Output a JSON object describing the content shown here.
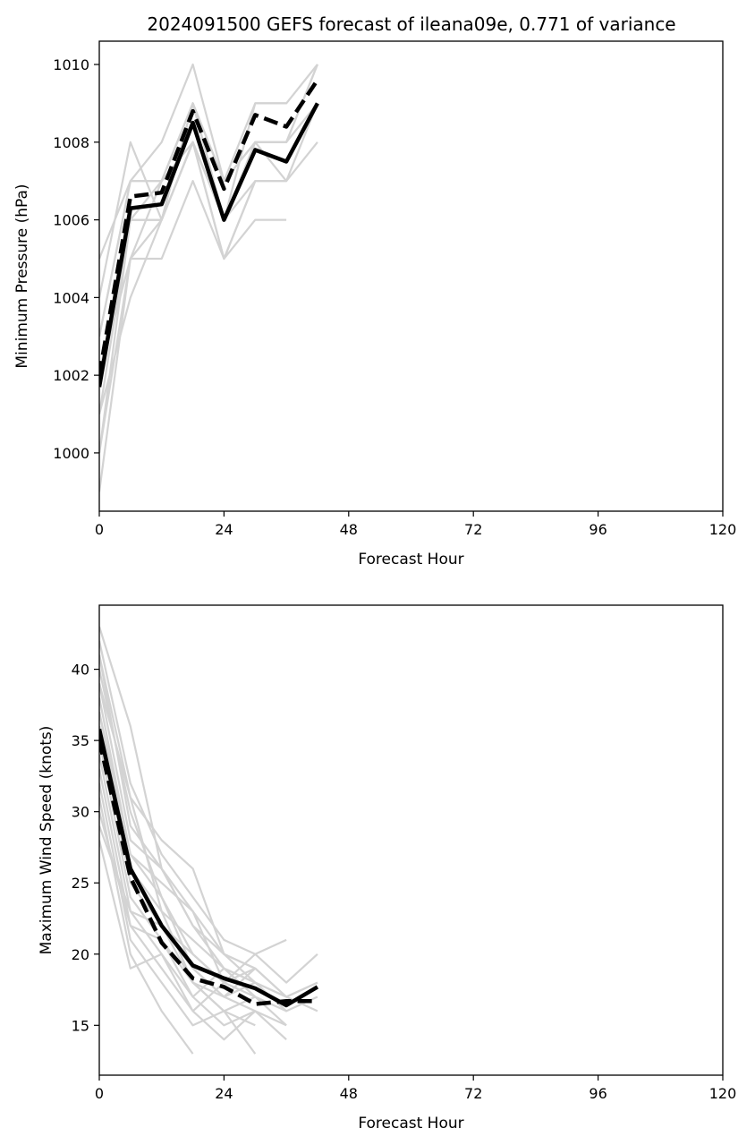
{
  "colors": {
    "member": "#d3d3d3",
    "mean": "#000000",
    "axis": "#000000",
    "background": "#ffffff"
  },
  "chart_data": [
    {
      "type": "line",
      "title": "2024091500 GEFS forecast of ileana09e, 0.771 of variance",
      "xlabel": "Forecast Hour",
      "ylabel": "Minimum Pressure (hPa)",
      "xlim": [
        0,
        120
      ],
      "ylim": [
        998.5,
        1010.6
      ],
      "xticks": [
        0,
        24,
        48,
        72,
        96,
        120
      ],
      "yticks": [
        1000,
        1002,
        1004,
        1006,
        1008,
        1010
      ],
      "grid": false,
      "members": [
        {
          "x": [
            0,
            6,
            12,
            18,
            24,
            30,
            36,
            42
          ],
          "y": [
            1005,
            1007,
            1008,
            1010,
            1007,
            1009,
            1009,
            1010
          ]
        },
        {
          "x": [
            0,
            6,
            12,
            18,
            24,
            30,
            36,
            42
          ],
          "y": [
            1003,
            1007,
            1007,
            1009,
            1006,
            1008,
            1008,
            1010
          ]
        },
        {
          "x": [
            0,
            6,
            12,
            18,
            24,
            30,
            36,
            42
          ],
          "y": [
            1002,
            1006,
            1007,
            1009,
            1007,
            1008,
            1008,
            1009
          ]
        },
        {
          "x": [
            0,
            6,
            12,
            18,
            24,
            30,
            36,
            42
          ],
          "y": [
            1001,
            1006,
            1006,
            1008,
            1006,
            1008,
            1007,
            1009
          ]
        },
        {
          "x": [
            0,
            6,
            12,
            18,
            24,
            30,
            36,
            42
          ],
          "y": [
            1000,
            1006,
            1006,
            1008,
            1006,
            1007,
            1007,
            1008
          ]
        },
        {
          "x": [
            0,
            6,
            12,
            18,
            24,
            30,
            36
          ],
          "y": [
            999,
            1005,
            1005,
            1007,
            1005,
            1006,
            1006
          ]
        },
        {
          "x": [
            0,
            6,
            12,
            18,
            24,
            30,
            36
          ],
          "y": [
            1004,
            1008,
            1006,
            1009,
            1006,
            1008,
            1008
          ]
        },
        {
          "x": [
            0,
            6,
            12,
            18,
            24,
            30,
            36
          ],
          "y": [
            1002,
            1005,
            1007,
            1008,
            1005,
            1007,
            1007
          ]
        },
        {
          "x": [
            0,
            6,
            12,
            18,
            24,
            30,
            36
          ],
          "y": [
            1003,
            1007,
            1007,
            1009,
            1006,
            1009,
            1009
          ]
        },
        {
          "x": [
            0,
            6,
            12,
            18,
            24,
            30
          ],
          "y": [
            1001,
            1004,
            1006,
            1008,
            1005,
            1007
          ]
        },
        {
          "x": [
            0,
            6,
            12,
            18,
            24,
            30,
            36,
            42
          ],
          "y": [
            1002,
            1006,
            1006,
            1009,
            1007,
            1008,
            1008,
            1010
          ]
        },
        {
          "x": [
            0,
            6,
            12,
            18,
            24
          ],
          "y": [
            1000,
            1005,
            1006,
            1008,
            1006
          ]
        }
      ],
      "series": [
        {
          "style": "solid",
          "x": [
            0,
            6,
            12,
            18,
            24,
            30,
            36,
            42
          ],
          "y": [
            1001.7,
            1006.3,
            1006.4,
            1008.5,
            1006.0,
            1007.8,
            1007.5,
            1009.0
          ]
        },
        {
          "style": "dashed",
          "x": [
            0,
            6,
            12,
            18,
            24,
            30,
            36,
            42
          ],
          "y": [
            1002.0,
            1006.6,
            1006.7,
            1008.8,
            1006.8,
            1008.7,
            1008.4,
            1009.6
          ]
        }
      ]
    },
    {
      "type": "line",
      "title": "",
      "xlabel": "Forecast Hour",
      "ylabel": "Maximum Wind Speed (knots)",
      "xlim": [
        0,
        120
      ],
      "ylim": [
        11.5,
        44.5
      ],
      "xticks": [
        0,
        24,
        48,
        72,
        96,
        120
      ],
      "yticks": [
        15,
        20,
        25,
        30,
        35,
        40
      ],
      "grid": false,
      "members": [
        {
          "x": [
            0,
            6,
            12,
            18,
            24,
            30,
            36,
            42
          ],
          "y": [
            43,
            36,
            26,
            22,
            20,
            19,
            17,
            18
          ]
        },
        {
          "x": [
            0,
            6,
            12,
            18,
            24,
            30,
            36,
            42
          ],
          "y": [
            42,
            32,
            27,
            24,
            21,
            20,
            18,
            20
          ]
        },
        {
          "x": [
            0,
            6,
            12,
            18,
            24,
            30,
            36,
            42
          ],
          "y": [
            41,
            31,
            28,
            26,
            20,
            19,
            17,
            16
          ]
        },
        {
          "x": [
            0,
            6,
            12,
            18,
            24,
            30,
            36
          ],
          "y": [
            40,
            30,
            24,
            20,
            18,
            20,
            21
          ]
        },
        {
          "x": [
            0,
            6,
            12,
            18,
            24,
            30,
            36,
            42
          ],
          "y": [
            39,
            28,
            26,
            22,
            19,
            18,
            16,
            17
          ]
        },
        {
          "x": [
            0,
            6,
            12,
            18,
            24,
            30,
            36
          ],
          "y": [
            38,
            27,
            25,
            23,
            18,
            17,
            15
          ]
        },
        {
          "x": [
            0,
            6,
            12,
            18,
            24,
            30,
            36,
            42
          ],
          "y": [
            37,
            26,
            23,
            21,
            19,
            18,
            17,
            18
          ]
        },
        {
          "x": [
            0,
            6,
            12,
            18,
            24,
            30,
            36
          ],
          "y": [
            36,
            25,
            22,
            19,
            17,
            16,
            14
          ]
        },
        {
          "x": [
            0,
            6,
            12,
            18,
            24,
            30
          ],
          "y": [
            35,
            24,
            21,
            18,
            16,
            15
          ]
        },
        {
          "x": [
            0,
            6,
            12,
            18,
            24,
            30,
            36
          ],
          "y": [
            34,
            23,
            20,
            17,
            15,
            16,
            15
          ]
        },
        {
          "x": [
            0,
            6,
            12,
            18,
            24,
            30
          ],
          "y": [
            33,
            22,
            19,
            16,
            14,
            16
          ]
        },
        {
          "x": [
            0,
            6,
            12,
            18,
            24,
            30
          ],
          "y": [
            32,
            21,
            18,
            15,
            16,
            13
          ]
        },
        {
          "x": [
            0,
            6,
            12,
            18
          ],
          "y": [
            31,
            20,
            16,
            13
          ]
        },
        {
          "x": [
            0,
            6,
            12,
            18,
            24,
            30,
            36
          ],
          "y": [
            30,
            22,
            21,
            17,
            19,
            17,
            16
          ]
        },
        {
          "x": [
            0,
            6,
            12,
            18,
            24,
            30
          ],
          "y": [
            29,
            23,
            22,
            18,
            17,
            19
          ]
        },
        {
          "x": [
            0,
            6,
            12,
            18,
            24
          ],
          "y": [
            28,
            19,
            20,
            16,
            18
          ]
        },
        {
          "x": [
            0,
            6,
            12,
            18,
            24,
            30,
            36
          ],
          "y": [
            41,
            29,
            26,
            23,
            20,
            18,
            17
          ]
        },
        {
          "x": [
            0,
            6,
            12,
            18,
            24,
            30
          ],
          "y": [
            37,
            27,
            24,
            19,
            17,
            18
          ]
        },
        {
          "x": [
            0,
            6,
            12,
            18,
            24,
            30
          ],
          "y": [
            39,
            31,
            23,
            18,
            16,
            17
          ]
        },
        {
          "x": [
            0,
            6,
            12,
            18,
            24,
            30
          ],
          "y": [
            36,
            26,
            22,
            20,
            18,
            19
          ]
        }
      ],
      "series": [
        {
          "style": "solid",
          "x": [
            0,
            6,
            12,
            18,
            24,
            30,
            36,
            42
          ],
          "y": [
            35.8,
            26.0,
            22.0,
            19.2,
            18.3,
            17.6,
            16.4,
            17.7
          ]
        },
        {
          "style": "dashed",
          "x": [
            0,
            6,
            12,
            18,
            24,
            30,
            36,
            42
          ],
          "y": [
            35.0,
            25.4,
            20.8,
            18.3,
            17.7,
            16.5,
            16.7,
            16.7
          ]
        }
      ]
    }
  ]
}
